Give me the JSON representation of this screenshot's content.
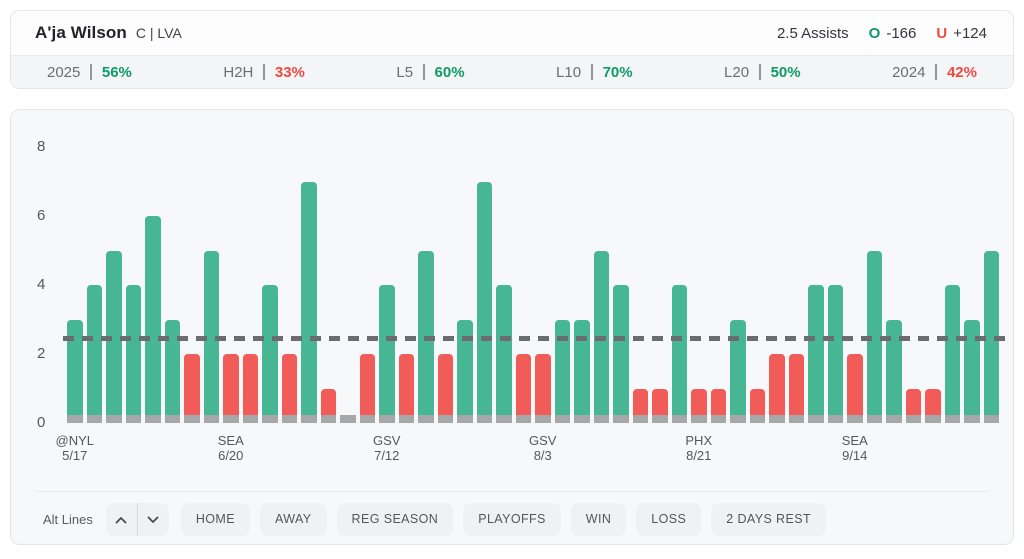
{
  "header": {
    "player_name": "A'ja Wilson",
    "player_meta": "C | LVA",
    "prop_line": "2.5 Assists",
    "over_label": "O",
    "over_odds": "-166",
    "under_label": "U",
    "under_odds": "+124"
  },
  "splits": [
    {
      "label": "2025",
      "value": "56%",
      "trend": "over"
    },
    {
      "label": "H2H",
      "value": "33%",
      "trend": "under"
    },
    {
      "label": "L5",
      "value": "60%",
      "trend": "over"
    },
    {
      "label": "L10",
      "value": "70%",
      "trend": "over"
    },
    {
      "label": "L20",
      "value": "50%",
      "trend": "over"
    },
    {
      "label": "2024",
      "value": "42%",
      "trend": "under"
    }
  ],
  "chart_data": {
    "type": "bar",
    "title": "",
    "xlabel": "",
    "ylabel": "",
    "ylim": [
      0,
      8
    ],
    "yticks": [
      0,
      2,
      4,
      6,
      8
    ],
    "grid": false,
    "legend": false,
    "line_value": 2.5,
    "values": [
      3,
      4,
      5,
      4,
      6,
      3,
      2,
      5,
      2,
      2,
      4,
      2,
      7,
      1,
      0,
      2,
      4,
      2,
      5,
      2,
      3,
      7,
      4,
      2,
      2,
      3,
      3,
      5,
      4,
      1,
      1,
      4,
      1,
      1,
      3,
      1,
      2,
      2,
      4,
      4,
      2,
      5,
      3,
      1,
      1,
      4,
      3,
      5
    ],
    "x_tick_labels": [
      {
        "index": 0,
        "team": "@NYL",
        "date": "5/17"
      },
      {
        "index": 8,
        "team": "SEA",
        "date": "6/20"
      },
      {
        "index": 16,
        "team": "GSV",
        "date": "7/12"
      },
      {
        "index": 24,
        "team": "GSV",
        "date": "8/3"
      },
      {
        "index": 32,
        "team": "PHX",
        "date": "8/21"
      },
      {
        "index": 40,
        "team": "SEA",
        "date": "9/14"
      }
    ]
  },
  "controls": {
    "alt_lines_label": "Alt Lines",
    "stepper_icons": [
      "chevron-up",
      "chevron-down"
    ],
    "filters": [
      "HOME",
      "AWAY",
      "REG SEASON",
      "PLAYOFFS",
      "WIN",
      "LOSS",
      "2 DAYS REST"
    ]
  },
  "colors": {
    "bar_over": "#47b793",
    "bar_under": "#f15b58",
    "bar_zero": "#a6a7a9",
    "dash_line": "#6b6c6e",
    "text_over": "#0f9a66",
    "text_under": "#f2493f"
  }
}
